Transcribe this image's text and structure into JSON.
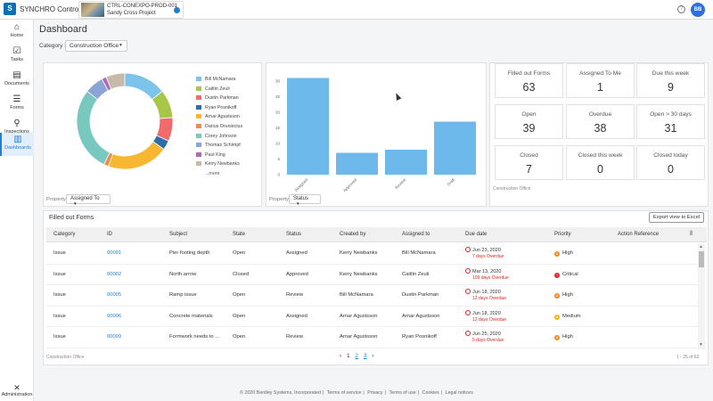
{
  "app": {
    "name": "SYNCHRO Control",
    "logo_letter": "S",
    "avatar_initials": "BB",
    "help_glyph": "?"
  },
  "project": {
    "code": "CTRL-CONEXPO-PROD-001",
    "name": "Sandy Cross Project"
  },
  "nav": [
    {
      "label": "Home",
      "icon": "home-icon",
      "glyph": "⌂"
    },
    {
      "label": "Tasks",
      "icon": "tasks-icon",
      "glyph": "☑"
    },
    {
      "label": "Documents",
      "icon": "documents-icon",
      "glyph": "▤"
    },
    {
      "label": "Forms",
      "icon": "forms-icon",
      "glyph": "☰"
    },
    {
      "label": "Inspections",
      "icon": "inspections-icon",
      "glyph": "⚲"
    },
    {
      "label": "Dashboards",
      "icon": "dashboards-icon",
      "glyph": "▥"
    }
  ],
  "admin": {
    "label": "Administration",
    "glyph": "✕"
  },
  "page": {
    "title": "Dashboard",
    "category_label": "Category :",
    "category_value": "Construction Office"
  },
  "donut": {
    "property_label": "Property",
    "property_value": "Assigned To",
    "more_label": "...more",
    "colors": {
      "Bill McNamara": "#7cc4ec",
      "Caitlin Zeuli": "#a8c64a",
      "Dustin Parkman": "#f36a6a",
      "Ryan Posnikoff": "#2a6fa8",
      "Arnar Agustsson": "#f7b733",
      "Darius Oruniecius": "#f28a4b",
      "Corey Johnson": "#79c8c0",
      "Thomas Schimpf": "#8aa4d6",
      "Paul King": "#b06bb8",
      "Kerry Newbanks": "#c8b9a8"
    }
  },
  "bar_meta": {
    "property_label": "Property",
    "property_value": "Status",
    "bar_color": "#6eb9ec"
  },
  "stats": {
    "filled_out_forms": {
      "label": "Filled out Forms",
      "value": "63"
    },
    "assigned_to_me": {
      "label": "Assigned To Me",
      "value": "1"
    },
    "due_this_week": {
      "label": "Due this week",
      "value": "9"
    },
    "open": {
      "label": "Open",
      "value": "39"
    },
    "overdue": {
      "label": "Overdue",
      "value": "38"
    },
    "open_over_30": {
      "label": "Open > 30 days",
      "value": "31"
    },
    "closed": {
      "label": "Closed",
      "value": "7"
    },
    "closed_this_week": {
      "label": "Closed this week",
      "value": "0"
    },
    "closed_today": {
      "label": "Closed today",
      "value": "0"
    },
    "footer": "Construction Office"
  },
  "table": {
    "title": "Filled out Forms",
    "export_label": "Export view to Excel",
    "columns": [
      "Category",
      "ID",
      "Subject",
      "State",
      "Status",
      "Created by",
      "Assigned to",
      "Due date",
      "Priority",
      "Action Reference"
    ],
    "rows": [
      {
        "category": "Issue",
        "id": "00001",
        "subject": "Pier footing depth",
        "state": "Open",
        "status": "Assigned",
        "created_by": "Kerry Newbanks",
        "assigned_to": "Bill McNamara",
        "due_date": "Jun 23, 2020",
        "overdue": "7 days Overdue",
        "priority": "High",
        "priority_glyph": "2",
        "priority_color": "#f08a24"
      },
      {
        "category": "Issue",
        "id": "00002",
        "subject": "North arrow",
        "state": "Closed",
        "status": "Approved",
        "created_by": "Kerry Newbanks",
        "assigned_to": "Caitlin Zeuli",
        "due_date": "Mar 13, 2020",
        "overdue": "109 days Overdue",
        "priority": "Critical",
        "priority_glyph": "!",
        "priority_color": "#d9262d"
      },
      {
        "category": "Issue",
        "id": "00005",
        "subject": "Ramp issue",
        "state": "Open",
        "status": "Review",
        "created_by": "Bill McNamara",
        "assigned_to": "Dustin Parkman",
        "due_date": "Jun 18, 2020",
        "overdue": "12 days Overdue",
        "priority": "High",
        "priority_glyph": "2",
        "priority_color": "#f08a24"
      },
      {
        "category": "Issue",
        "id": "00006",
        "subject": "Concrete materials",
        "state": "Open",
        "status": "Assigned",
        "created_by": "Arnar Agustsson",
        "assigned_to": "Arnar Agustsson",
        "due_date": "Jun 18, 2020",
        "overdue": "12 days Overdue",
        "priority": "Medium",
        "priority_glyph": "3",
        "priority_color": "#f2b51c"
      },
      {
        "category": "Issue",
        "id": "00009",
        "subject": "Formwork needs to ...",
        "state": "Open",
        "status": "Review",
        "created_by": "Arnar Agustsson",
        "assigned_to": "Ryan Posnikoff",
        "due_date": "Jun 25, 2020",
        "overdue": "5 days Overdue",
        "priority": "High",
        "priority_glyph": "2",
        "priority_color": "#f08a24"
      }
    ],
    "pager": {
      "prev": "‹",
      "pages": [
        "1",
        "2",
        "3"
      ],
      "next": "›"
    },
    "range": "1 - 25 of 63",
    "footer": "Construction Office"
  },
  "footer": [
    "© 2020 Bentley Systems, Incorporated",
    "Terms of service",
    "Privacy",
    "Terms of use",
    "Cookies",
    "Legal notices"
  ],
  "chart_data": [
    {
      "type": "pie",
      "categories": [
        "Bill McNamara",
        "Caitlin Zeuli",
        "Dustin Parkman",
        "Ryan Posnikoff",
        "Arnar Agustsson",
        "Darius Oruniecius",
        "Corey Johnson",
        "Thomas Schimpf",
        "Paul King",
        "Kerry Newbanks"
      ],
      "values": [
        9,
        6,
        5,
        2,
        13,
        1,
        18,
        4,
        1,
        4
      ],
      "donut": true
    },
    {
      "type": "bar",
      "categories": [
        "Assigned",
        "Approved",
        "Review",
        "Draft"
      ],
      "values": [
        31,
        7,
        8,
        17
      ],
      "ylim": [
        0,
        32
      ],
      "yticks": [
        0,
        5,
        10,
        15,
        20,
        25,
        30
      ],
      "grid": false
    }
  ]
}
